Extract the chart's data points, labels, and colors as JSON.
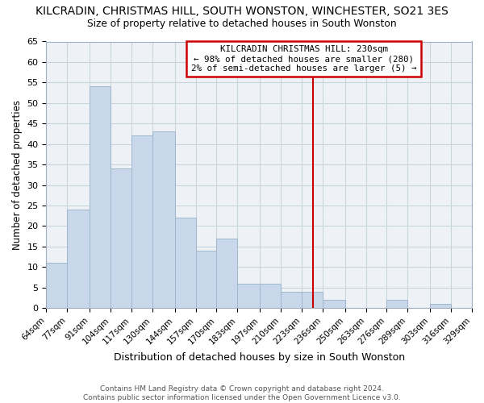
{
  "title": "KILCRADIN, CHRISTMAS HILL, SOUTH WONSTON, WINCHESTER, SO21 3ES",
  "subtitle": "Size of property relative to detached houses in South Wonston",
  "xlabel": "Distribution of detached houses by size in South Wonston",
  "ylabel": "Number of detached properties",
  "bar_color": "#c8d8ea",
  "bar_edge_color": "#a0b8cc",
  "grid_color": "#c8d4de",
  "background_color": "#eef2f7",
  "bins": [
    64,
    77,
    91,
    104,
    117,
    130,
    144,
    157,
    170,
    183,
    197,
    210,
    223,
    236,
    250,
    263,
    276,
    289,
    303,
    316,
    329
  ],
  "bin_labels": [
    "64sqm",
    "77sqm",
    "91sqm",
    "104sqm",
    "117sqm",
    "130sqm",
    "144sqm",
    "157sqm",
    "170sqm",
    "183sqm",
    "197sqm",
    "210sqm",
    "223sqm",
    "236sqm",
    "250sqm",
    "263sqm",
    "276sqm",
    "289sqm",
    "303sqm",
    "316sqm",
    "329sqm"
  ],
  "values": [
    11,
    24,
    54,
    34,
    42,
    43,
    22,
    14,
    17,
    6,
    6,
    4,
    4,
    2,
    0,
    0,
    2,
    0,
    1,
    0
  ],
  "ylim": [
    0,
    65
  ],
  "yticks": [
    0,
    5,
    10,
    15,
    20,
    25,
    30,
    35,
    40,
    45,
    50,
    55,
    60,
    65
  ],
  "vline_x": 230,
  "vline_color": "#cc0000",
  "annotation_text": "KILCRADIN CHRISTMAS HILL: 230sqm\n← 98% of detached houses are smaller (280)\n2% of semi-detached houses are larger (5) →",
  "footer_line1": "Contains HM Land Registry data © Crown copyright and database right 2024.",
  "footer_line2": "Contains public sector information licensed under the Open Government Licence v3.0."
}
